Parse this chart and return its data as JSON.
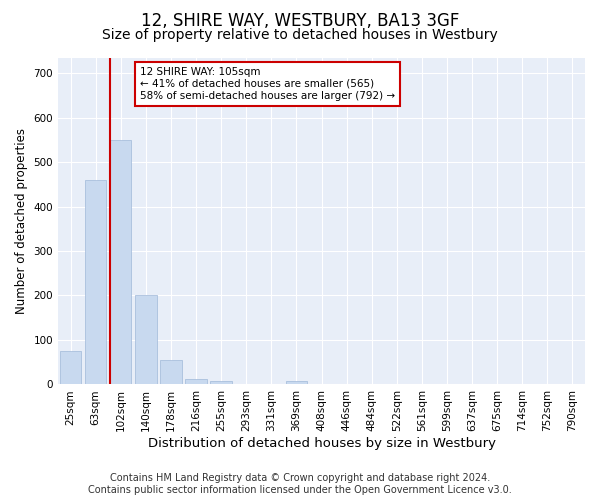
{
  "title": "12, SHIRE WAY, WESTBURY, BA13 3GF",
  "subtitle": "Size of property relative to detached houses in Westbury",
  "xlabel": "Distribution of detached houses by size in Westbury",
  "ylabel": "Number of detached properties",
  "bar_color": "#c8d9ef",
  "bar_edge_color": "#a0b8d8",
  "background_color": "#e8eef8",
  "grid_color": "#ffffff",
  "categories": [
    "25sqm",
    "63sqm",
    "102sqm",
    "140sqm",
    "178sqm",
    "216sqm",
    "255sqm",
    "293sqm",
    "331sqm",
    "369sqm",
    "408sqm",
    "446sqm",
    "484sqm",
    "522sqm",
    "561sqm",
    "599sqm",
    "637sqm",
    "675sqm",
    "714sqm",
    "752sqm",
    "790sqm"
  ],
  "values": [
    75,
    460,
    550,
    200,
    55,
    13,
    7,
    0,
    0,
    8,
    0,
    0,
    0,
    0,
    0,
    0,
    0,
    0,
    0,
    0,
    0
  ],
  "ylim": [
    0,
    735
  ],
  "yticks": [
    0,
    100,
    200,
    300,
    400,
    500,
    600,
    700
  ],
  "vline_x": 1.575,
  "property_line_label": "12 SHIRE WAY: 105sqm",
  "annotation_line1": "← 41% of detached houses are smaller (565)",
  "annotation_line2": "58% of semi-detached houses are larger (792) →",
  "annotation_box_color": "#ffffff",
  "annotation_border_color": "#cc0000",
  "vline_color": "#cc0000",
  "footer_line1": "Contains HM Land Registry data © Crown copyright and database right 2024.",
  "footer_line2": "Contains public sector information licensed under the Open Government Licence v3.0.",
  "title_fontsize": 12,
  "subtitle_fontsize": 10,
  "tick_fontsize": 7.5,
  "ylabel_fontsize": 8.5,
  "xlabel_fontsize": 9.5,
  "footer_fontsize": 7
}
